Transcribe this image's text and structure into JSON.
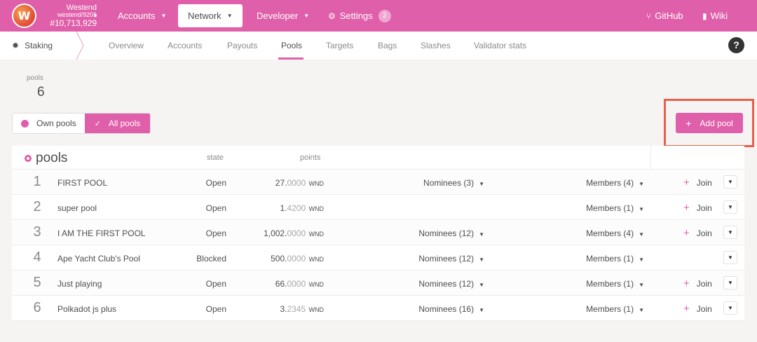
{
  "chain": {
    "name": "Westend",
    "spec": "westend/9201",
    "block": "#10,713,929",
    "logo_letter": "W"
  },
  "topnav": {
    "accounts": "Accounts",
    "network": "Network",
    "developer": "Developer",
    "settings": "Settings",
    "settings_badge": "2",
    "github": "GitHub",
    "wiki": "Wiki"
  },
  "subnav": {
    "section": "Staking",
    "tabs": [
      "Overview",
      "Accounts",
      "Payouts",
      "Pools",
      "Targets",
      "Bags",
      "Slashes",
      "Validator stats"
    ],
    "active": "Pools",
    "help": "?"
  },
  "summary": {
    "label": "pools",
    "value": "6"
  },
  "filter": {
    "own": "Own pools",
    "all": "All pools",
    "selected": "All pools"
  },
  "actions": {
    "add_pool": "Add pool"
  },
  "table": {
    "title": "pools",
    "headers": {
      "state": "state",
      "points": "points"
    },
    "rows": [
      {
        "id": "1",
        "name": "FIRST POOL",
        "state": "Open",
        "points_int": "27.",
        "points_dec": "0000",
        "unit": "WND",
        "nominees": "Nominees (3)",
        "members": "Members (4)",
        "join": "Join"
      },
      {
        "id": "2",
        "name": "super pool",
        "state": "Open",
        "points_int": "1.",
        "points_dec": "4200",
        "unit": "WND",
        "nominees": "",
        "members": "Members (1)",
        "join": "Join"
      },
      {
        "id": "3",
        "name": "I AM THE FIRST POOL",
        "state": "Open",
        "points_int": "1,002.",
        "points_dec": "0000",
        "unit": "WND",
        "nominees": "Nominees (12)",
        "members": "Members (4)",
        "join": "Join"
      },
      {
        "id": "4",
        "name": "Ape Yacht Club's Pool",
        "state": "Blocked",
        "points_int": "500.",
        "points_dec": "0000",
        "unit": "WND",
        "nominees": "Nominees (12)",
        "members": "Members (1)",
        "join": ""
      },
      {
        "id": "5",
        "name": "Just playing",
        "state": "Open",
        "points_int": "66.",
        "points_dec": "0000",
        "unit": "WND",
        "nominees": "Nominees (12)",
        "members": "Members (1)",
        "join": "Join"
      },
      {
        "id": "6",
        "name": "Polkadot js plus",
        "state": "Open",
        "points_int": "3.",
        "points_dec": "2345",
        "unit": "WND",
        "nominees": "Nominees (16)",
        "members": "Members (1)",
        "join": "Join"
      }
    ]
  },
  "colors": {
    "accent": "#e05faa",
    "highlight_box": "#e8604a"
  }
}
